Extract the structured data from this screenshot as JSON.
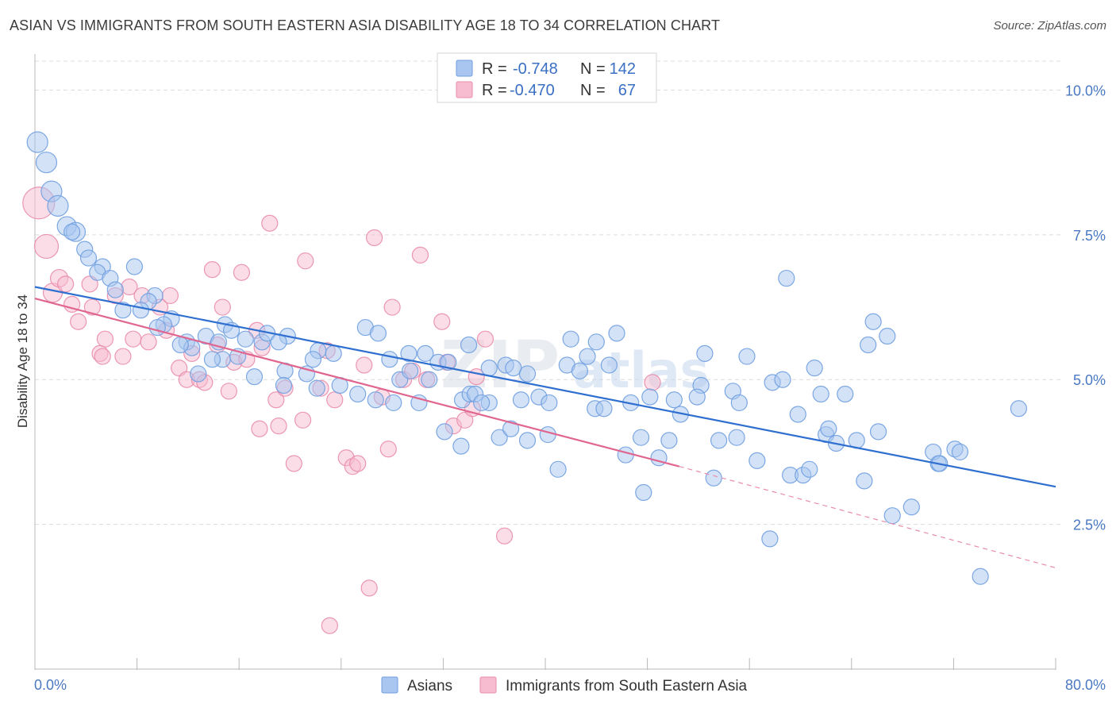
{
  "header": {
    "title": "ASIAN VS IMMIGRANTS FROM SOUTH EASTERN ASIA DISABILITY AGE 18 TO 34 CORRELATION CHART",
    "source": "Source: ZipAtlas.com"
  },
  "watermark": {
    "zip": "ZIP",
    "atlas": "atlas"
  },
  "legend": {
    "r_label": "R =",
    "n_label": "N =",
    "rows": [
      {
        "series": "Asians",
        "r": "-0.748",
        "n": "142",
        "color": "#a8c6f0",
        "stroke": "#6f9ee0"
      },
      {
        "series": "Immigrants from South Eastern Asia",
        "r": "-0.470",
        "n": "67",
        "color": "#f7bcd0",
        "stroke": "#e98cab"
      }
    ]
  },
  "chart_data": {
    "type": "scatter",
    "title": "ASIAN VS IMMIGRANTS FROM SOUTH EASTERN ASIA DISABILITY AGE 18 TO 34 CORRELATION CHART",
    "xlabel": "",
    "ylabel": "Disability Age 18 to 34",
    "xlim": [
      0,
      80
    ],
    "ylim": [
      0,
      10.5
    ],
    "x_tick_labels": [
      "0.0%",
      "80.0%"
    ],
    "y_ticks": [
      2.5,
      5.0,
      7.5,
      10.0
    ],
    "y_tick_labels": [
      "2.5%",
      "5.0%",
      "7.5%",
      "10.0%"
    ],
    "grid": true,
    "legend_position": "top-center",
    "series": [
      {
        "name": "Asians",
        "color": "#6f9ee0",
        "fill": "#a8c6f0",
        "trend": {
          "x": [
            0,
            80
          ],
          "y": [
            6.6,
            3.15
          ]
        },
        "points": [
          [
            0.2,
            9.1,
            1.3
          ],
          [
            0.9,
            8.75,
            1.3
          ],
          [
            1.3,
            8.25,
            1.3
          ],
          [
            1.8,
            8.0,
            1.3
          ],
          [
            2.5,
            7.65,
            1.2
          ],
          [
            3.2,
            7.55,
            1.2
          ],
          [
            2.9,
            7.55,
            1.0
          ],
          [
            3.9,
            7.25,
            1.0
          ],
          [
            4.2,
            7.1,
            1.0
          ],
          [
            5.3,
            6.95,
            1.0
          ],
          [
            4.9,
            6.85,
            1.0
          ],
          [
            7.8,
            6.95,
            1.0
          ],
          [
            5.9,
            6.75,
            1.0
          ],
          [
            6.3,
            6.55,
            1.0
          ],
          [
            9.4,
            6.45,
            1.0
          ],
          [
            8.9,
            6.35,
            1.0
          ],
          [
            6.9,
            6.2,
            1.0
          ],
          [
            8.3,
            6.2,
            1.0
          ],
          [
            10.7,
            6.05,
            1.0
          ],
          [
            10.1,
            5.95,
            1.0
          ],
          [
            9.6,
            5.9,
            1.0
          ],
          [
            14.9,
            5.95,
            1.0
          ],
          [
            15.4,
            5.85,
            1.0
          ],
          [
            13.4,
            5.75,
            1.0
          ],
          [
            11.9,
            5.65,
            1.0
          ],
          [
            12.3,
            5.55,
            1.0
          ],
          [
            11.4,
            5.6,
            1.0
          ],
          [
            14.4,
            5.65,
            1.0
          ],
          [
            16.5,
            5.7,
            1.0
          ],
          [
            17.8,
            5.65,
            1.0
          ],
          [
            18.2,
            5.8,
            1.0
          ],
          [
            19.8,
            5.75,
            1.0
          ],
          [
            19.1,
            5.65,
            1.0
          ],
          [
            14.7,
            5.35,
            1.0
          ],
          [
            15.9,
            5.4,
            1.0
          ],
          [
            13.9,
            5.35,
            1.0
          ],
          [
            12.8,
            5.1,
            1.0
          ],
          [
            17.2,
            5.05,
            1.0
          ],
          [
            19.6,
            5.15,
            1.0
          ],
          [
            21.3,
            5.1,
            1.0
          ],
          [
            22.2,
            5.5,
            1.0
          ],
          [
            21.8,
            5.35,
            1.0
          ],
          [
            23.4,
            5.45,
            1.0
          ],
          [
            25.9,
            5.9,
            1.0
          ],
          [
            26.9,
            5.8,
            1.0
          ],
          [
            27.8,
            5.35,
            1.0
          ],
          [
            29.3,
            5.45,
            1.0
          ],
          [
            30.6,
            5.45,
            1.0
          ],
          [
            28.6,
            5.0,
            1.0
          ],
          [
            30.9,
            5.0,
            1.0
          ],
          [
            29.4,
            5.15,
            1.0
          ],
          [
            19.5,
            4.9,
            1.0
          ],
          [
            22.1,
            4.85,
            1.0
          ],
          [
            23.9,
            4.9,
            1.0
          ],
          [
            25.3,
            4.75,
            1.0
          ],
          [
            26.7,
            4.65,
            1.0
          ],
          [
            28.1,
            4.6,
            1.0
          ],
          [
            31.6,
            5.3,
            1.0
          ],
          [
            32.4,
            5.3,
            1.0
          ],
          [
            34.0,
            5.6,
            1.0
          ],
          [
            35.6,
            5.2,
            1.0
          ],
          [
            36.9,
            5.25,
            1.0
          ],
          [
            37.5,
            5.2,
            1.0
          ],
          [
            38.6,
            5.1,
            1.0
          ],
          [
            30.1,
            4.6,
            1.0
          ],
          [
            33.5,
            4.65,
            1.0
          ],
          [
            34.1,
            4.75,
            1.0
          ],
          [
            34.5,
            4.75,
            1.0
          ],
          [
            35.6,
            4.6,
            1.0
          ],
          [
            38.1,
            4.65,
            1.0
          ],
          [
            39.5,
            4.7,
            1.0
          ],
          [
            40.3,
            4.6,
            1.0
          ],
          [
            41.7,
            5.25,
            1.0
          ],
          [
            43.3,
            5.4,
            1.0
          ],
          [
            42.7,
            5.15,
            1.0
          ],
          [
            42.0,
            5.7,
            1.0
          ],
          [
            44.0,
            5.65,
            1.0
          ],
          [
            45.6,
            5.8,
            1.0
          ],
          [
            45.0,
            5.25,
            1.0
          ],
          [
            43.9,
            4.5,
            1.0
          ],
          [
            44.6,
            4.5,
            1.0
          ],
          [
            46.7,
            4.6,
            1.0
          ],
          [
            48.2,
            4.7,
            1.0
          ],
          [
            50.1,
            4.65,
            1.0
          ],
          [
            50.6,
            4.4,
            1.0
          ],
          [
            52.2,
            4.9,
            1.0
          ],
          [
            51.9,
            4.7,
            1.0
          ],
          [
            52.5,
            5.45,
            1.0
          ],
          [
            54.7,
            4.8,
            1.0
          ],
          [
            55.2,
            4.6,
            1.0
          ],
          [
            55.8,
            5.4,
            1.0
          ],
          [
            57.8,
            4.95,
            1.0
          ],
          [
            58.6,
            5.0,
            1.0
          ],
          [
            58.9,
            6.75,
            1.0
          ],
          [
            59.8,
            4.4,
            1.0
          ],
          [
            61.1,
            5.2,
            1.0
          ],
          [
            61.6,
            4.75,
            1.0
          ],
          [
            63.5,
            4.75,
            1.0
          ],
          [
            65.7,
            6.0,
            1.0
          ],
          [
            65.3,
            5.6,
            1.0
          ],
          [
            66.8,
            5.75,
            1.0
          ],
          [
            36.4,
            4.0,
            1.0
          ],
          [
            38.6,
            3.95,
            1.0
          ],
          [
            40.2,
            4.05,
            1.0
          ],
          [
            37.3,
            4.15,
            1.0
          ],
          [
            32.1,
            4.1,
            1.0
          ],
          [
            33.4,
            3.85,
            1.0
          ],
          [
            41.0,
            3.45,
            1.0
          ],
          [
            46.3,
            3.7,
            1.0
          ],
          [
            47.5,
            4.0,
            1.0
          ],
          [
            49.7,
            3.95,
            1.0
          ],
          [
            48.9,
            3.65,
            1.0
          ],
          [
            47.7,
            3.05,
            1.0
          ],
          [
            53.6,
            3.95,
            1.0
          ],
          [
            53.2,
            3.3,
            1.0
          ],
          [
            55.0,
            4.0,
            1.0
          ],
          [
            56.6,
            3.6,
            1.0
          ],
          [
            57.6,
            2.25,
            1.0
          ],
          [
            59.2,
            3.35,
            1.0
          ],
          [
            60.2,
            3.35,
            1.0
          ],
          [
            60.7,
            3.45,
            1.0
          ],
          [
            62.0,
            4.05,
            1.0
          ],
          [
            62.2,
            4.15,
            1.0
          ],
          [
            62.8,
            3.9,
            1.0
          ],
          [
            64.4,
            3.95,
            1.0
          ],
          [
            65.0,
            3.25,
            1.0
          ],
          [
            66.1,
            4.1,
            1.0
          ],
          [
            67.2,
            2.65,
            1.0
          ],
          [
            68.7,
            2.8,
            1.0
          ],
          [
            70.8,
            3.55,
            1.0
          ],
          [
            70.4,
            3.75,
            1.0
          ],
          [
            72.1,
            3.8,
            1.0
          ],
          [
            72.5,
            3.75,
            1.0
          ],
          [
            70.9,
            3.55,
            1.0
          ],
          [
            74.1,
            1.6,
            1.0
          ],
          [
            77.1,
            4.5,
            1.0
          ],
          [
            35.0,
            4.6,
            1.0
          ]
        ]
      },
      {
        "name": "Immigrants from South Eastern Asia",
        "color": "#e98cab",
        "fill": "#f7bcd0",
        "trend": {
          "x": [
            0,
            50.5
          ],
          "y": [
            6.4,
            3.5
          ]
        },
        "trend_dashed": {
          "x": [
            50.5,
            80
          ],
          "y": [
            3.5,
            1.75
          ]
        },
        "points": [
          [
            0.3,
            8.05,
            2.0
          ],
          [
            0.9,
            7.3,
            1.5
          ],
          [
            1.4,
            6.5,
            1.2
          ],
          [
            1.9,
            6.75,
            1.1
          ],
          [
            2.4,
            6.65,
            1.0
          ],
          [
            2.9,
            6.3,
            1.0
          ],
          [
            3.4,
            6.0,
            1.0
          ],
          [
            4.3,
            6.65,
            1.0
          ],
          [
            4.5,
            6.25,
            1.0
          ],
          [
            5.5,
            5.7,
            1.0
          ],
          [
            5.1,
            5.45,
            1.0
          ],
          [
            5.3,
            5.4,
            1.0
          ],
          [
            6.3,
            6.45,
            1.0
          ],
          [
            6.9,
            5.4,
            1.0
          ],
          [
            7.4,
            6.6,
            1.0
          ],
          [
            7.7,
            5.7,
            1.0
          ],
          [
            8.4,
            6.45,
            1.0
          ],
          [
            8.9,
            5.65,
            1.0
          ],
          [
            9.8,
            6.25,
            1.0
          ],
          [
            10.3,
            5.85,
            1.0
          ],
          [
            10.6,
            6.45,
            1.0
          ],
          [
            11.3,
            5.2,
            1.0
          ],
          [
            11.9,
            5.0,
            1.0
          ],
          [
            12.3,
            5.45,
            1.0
          ],
          [
            12.9,
            5.0,
            1.0
          ],
          [
            13.3,
            4.95,
            1.0
          ],
          [
            13.9,
            6.9,
            1.0
          ],
          [
            14.3,
            5.6,
            1.0
          ],
          [
            14.7,
            6.25,
            1.0
          ],
          [
            15.2,
            4.8,
            1.0
          ],
          [
            15.6,
            5.3,
            1.0
          ],
          [
            16.2,
            6.85,
            1.0
          ],
          [
            16.6,
            5.35,
            1.0
          ],
          [
            17.4,
            5.85,
            1.0
          ],
          [
            17.8,
            5.55,
            1.0
          ],
          [
            17.6,
            4.15,
            1.0
          ],
          [
            18.4,
            7.7,
            1.0
          ],
          [
            18.9,
            4.65,
            1.0
          ],
          [
            19.1,
            4.2,
            1.0
          ],
          [
            19.6,
            4.85,
            1.0
          ],
          [
            20.3,
            3.55,
            1.0
          ],
          [
            21.0,
            4.3,
            1.0
          ],
          [
            21.2,
            7.05,
            1.0
          ],
          [
            22.4,
            4.85,
            1.0
          ],
          [
            22.9,
            5.5,
            1.0
          ],
          [
            23.5,
            4.65,
            1.0
          ],
          [
            24.4,
            3.65,
            1.0
          ],
          [
            24.9,
            3.5,
            1.0
          ],
          [
            25.3,
            3.55,
            1.0
          ],
          [
            25.8,
            5.25,
            1.0
          ],
          [
            26.2,
            1.4,
            1.0
          ],
          [
            26.6,
            7.45,
            1.0
          ],
          [
            27.2,
            4.7,
            1.0
          ],
          [
            27.7,
            3.8,
            1.0
          ],
          [
            28.0,
            6.25,
            1.0
          ],
          [
            28.9,
            5.0,
            1.0
          ],
          [
            29.6,
            5.15,
            1.0
          ],
          [
            30.2,
            7.15,
            1.0
          ],
          [
            30.7,
            5.0,
            1.0
          ],
          [
            31.9,
            6.0,
            1.0
          ],
          [
            32.3,
            5.3,
            1.0
          ],
          [
            32.8,
            4.2,
            1.0
          ],
          [
            33.7,
            4.3,
            1.0
          ],
          [
            34.3,
            4.5,
            1.0
          ],
          [
            34.6,
            5.05,
            1.0
          ],
          [
            35.3,
            5.7,
            1.0
          ],
          [
            36.8,
            2.3,
            1.0
          ],
          [
            48.4,
            4.95,
            1.0
          ],
          [
            23.1,
            0.75,
            1.0
          ]
        ]
      }
    ]
  }
}
